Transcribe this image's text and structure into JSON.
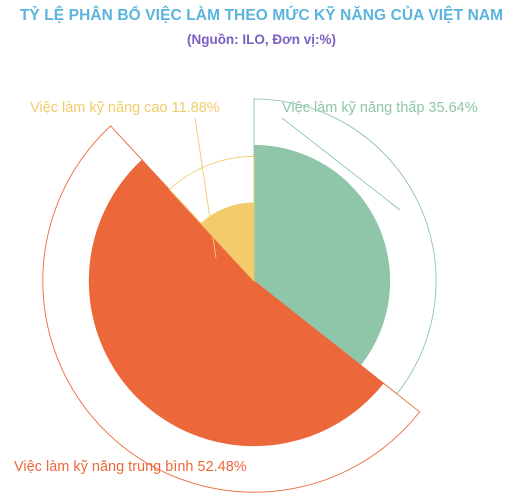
{
  "chart_data": {
    "type": "pie",
    "title": "TỶ LỆ PHÂN BỔ VIỆC LÀM THEO MỨC KỸ NĂNG CỦA VIỆT NAM",
    "subtitle": "(Nguồn:  ILO, Đơn vị:%)",
    "slices": [
      {
        "name": "Việc làm kỹ năng thấp",
        "value": 35.64,
        "label": "Việc làm kỹ năng thấp 35.64%",
        "color": "#8fc5a8",
        "outline_color": "#8fc5a8"
      },
      {
        "name": "Việc làm kỹ năng trung bình",
        "value": 52.48,
        "label": "Việc làm kỹ năng trung bình 52.48%",
        "color": "#ec683a",
        "outline_color": "#ec683a"
      },
      {
        "name": "Việc làm kỹ năng cao",
        "value": 11.88,
        "label": "Việc làm kỹ năng cao 11.88%",
        "color": "#f2cc6b",
        "outline_color": "#f2cc6b"
      }
    ],
    "start_angle": "12 o'clock",
    "direction": "clockwise",
    "legend": "none"
  },
  "colors": {
    "title": "#5ab4dc",
    "subtitle": "#7a5fc0",
    "background": "#ffffff"
  }
}
